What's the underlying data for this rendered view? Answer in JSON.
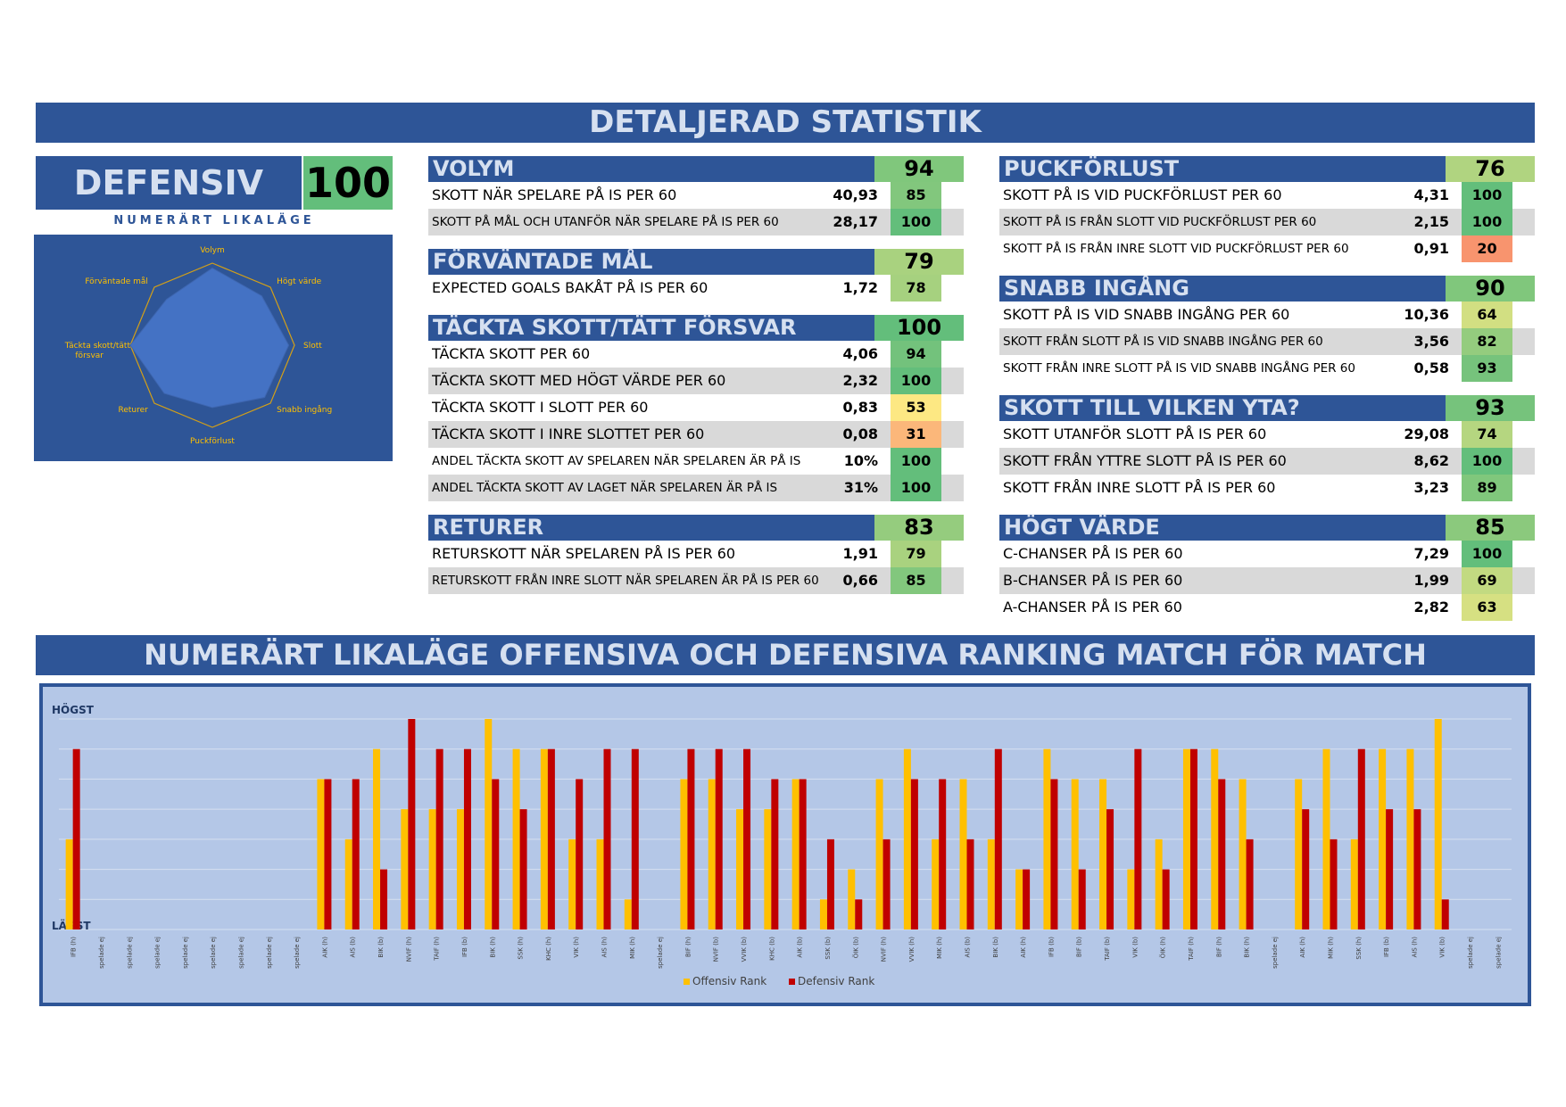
{
  "header": {
    "title": "DETALJERAD STATISTIK",
    "subtitle": "NUMERÄRT LIKALÄGE OFFENSIVA OCH DEFENSIVA RANKING MATCH FÖR MATCH"
  },
  "defensive": {
    "label": "DEFENSIV",
    "score": "100",
    "situation": "NUMERÄRT LIKALÄGE",
    "color": "#63be7b"
  },
  "radar": {
    "axes": [
      "Volym",
      "Högt värde",
      "Slott",
      "Snabb ingång",
      "Puckförlust",
      "Returer",
      "Täckta skott/tätt försvar",
      "Förväntade mål"
    ],
    "values": [
      94,
      85,
      93,
      90,
      76,
      83,
      100,
      79
    ],
    "fill": "#4472c4",
    "ring": "#d4a017"
  },
  "panels": {
    "volym": {
      "title": "VOLYM",
      "score": "94",
      "color": "#80c77c",
      "rows": [
        {
          "label": "SKOTT NÄR SPELARE PÅ IS PER 60",
          "value": "40,93",
          "rank": "85",
          "color": "#82c77d"
        },
        {
          "label": "SKOTT PÅ MÅL OCH UTANFÖR NÄR SPELARE PÅ IS PER 60",
          "value": "28,17",
          "rank": "100",
          "color": "#63be7b"
        }
      ]
    },
    "xg": {
      "title": "FÖRVÄNTADE MÅL",
      "score": "79",
      "color": "#a9d27f",
      "rows": [
        {
          "label": "EXPECTED GOALS BAKÅT PÅ IS PER 60",
          "value": "1,72",
          "rank": "78",
          "color": "#a6d17f"
        }
      ]
    },
    "block": {
      "title": "TÄCKTA SKOTT/TÄTT FÖRSVAR",
      "score": "100",
      "color": "#63be7b",
      "rows": [
        {
          "label": "TÄCKTA SKOTT PER 60",
          "value": "4,06",
          "rank": "94",
          "color": "#73c27c"
        },
        {
          "label": "TÄCKTA SKOTT MED HÖGT VÄRDE PER 60",
          "value": "2,32",
          "rank": "100",
          "color": "#63be7b"
        },
        {
          "label": "TÄCKTA SKOTT I SLOTT PER 60",
          "value": "0,83",
          "rank": "53",
          "color": "#fde883"
        },
        {
          "label": "TÄCKTA SKOTT I INRE SLOTTET PER 60",
          "value": "0,08",
          "rank": "31",
          "color": "#fbb77a"
        },
        {
          "label": "ANDEL TÄCKTA SKOTT AV SPELAREN NÄR SPELAREN ÄR PÅ IS",
          "value": "10%",
          "rank": "100",
          "color": "#63be7b"
        },
        {
          "label": "ANDEL TÄCKTA SKOTT AV LAGET NÄR SPELAREN ÄR PÅ IS",
          "value": "31%",
          "rank": "100",
          "color": "#63be7b"
        }
      ]
    },
    "returer": {
      "title": "RETURER",
      "score": "83",
      "color": "#95cc7e",
      "rows": [
        {
          "label": "RETURSKOTT NÄR SPELAREN PÅ IS PER 60",
          "value": "1,91",
          "rank": "79",
          "color": "#a9d27f"
        },
        {
          "label": "RETURSKOTT FRÅN INRE SLOTT NÄR SPELAREN ÄR PÅ IS PER 60",
          "value": "0,66",
          "rank": "85",
          "color": "#82c77d"
        }
      ]
    },
    "puck": {
      "title": "PUCKFÖRLUST",
      "score": "76",
      "color": "#b0d480",
      "rows": [
        {
          "label": "SKOTT PÅ IS VID PUCKFÖRLUST PER 60",
          "value": "4,31",
          "rank": "100",
          "color": "#63be7b"
        },
        {
          "label": "SKOTT PÅ IS FRÅN SLOTT VID PUCKFÖRLUST PER 60",
          "value": "2,15",
          "rank": "100",
          "color": "#63be7b"
        },
        {
          "label": "SKOTT PÅ IS FRÅN INRE SLOTT VID PUCKFÖRLUST PER 60",
          "value": "0,91",
          "rank": "20",
          "color": "#f8946e"
        }
      ]
    },
    "snabb": {
      "title": "SNABB INGÅNG",
      "score": "90",
      "color": "#80c77c",
      "rows": [
        {
          "label": "SKOTT PÅ IS VID SNABB INGÅNG PER 60",
          "value": "10,36",
          "rank": "64",
          "color": "#d2df82"
        },
        {
          "label": "SKOTT FRÅN SLOTT PÅ IS VID SNABB INGÅNG PER 60",
          "value": "3,56",
          "rank": "82",
          "color": "#94cc7e"
        },
        {
          "label": "SKOTT FRÅN INRE SLOTT PÅ IS VID SNABB INGÅNG PER 60",
          "value": "0,58",
          "rank": "93",
          "color": "#76c37c"
        }
      ]
    },
    "yta": {
      "title": "SKOTT TILL VILKEN YTA?",
      "score": "93",
      "color": "#76c37c",
      "rows": [
        {
          "label": "SKOTT UTANFÖR SLOTT PÅ IS PER 60",
          "value": "29,08",
          "rank": "74",
          "color": "#b5d680"
        },
        {
          "label": "SKOTT FRÅN YTTRE SLOTT PÅ IS PER 60",
          "value": "8,62",
          "rank": "100",
          "color": "#63be7b"
        },
        {
          "label": "SKOTT FRÅN INRE SLOTT PÅ IS PER 60",
          "value": "3,23",
          "rank": "89",
          "color": "#80c77c"
        }
      ]
    },
    "hogt": {
      "title": "HÖGT VÄRDE",
      "score": "85",
      "color": "#8bc97d",
      "rows": [
        {
          "label": "C-CHANSER PÅ IS PER 60",
          "value": "7,29",
          "rank": "100",
          "color": "#63be7b"
        },
        {
          "label": "B-CHANSER PÅ IS PER 60",
          "value": "1,99",
          "rank": "69",
          "color": "#c2da81"
        },
        {
          "label": "A-CHANSER PÅ IS PER 60",
          "value": "2,82",
          "rank": "63",
          "color": "#d6e082"
        }
      ]
    }
  },
  "chart_data": {
    "type": "bar",
    "ytop_label": "HÖGST",
    "ybottom_label": "LÄGST",
    "ylim": [
      0,
      7
    ],
    "grid": true,
    "legend_position": "bottom",
    "categories": [
      "IFB (h)",
      "spelade ej",
      "spelade ej",
      "spelade ej",
      "spelade ej",
      "spelade ej",
      "spelade ej",
      "spelade ej",
      "spelade ej",
      "AIK (h)",
      "AIS (b)",
      "BIK (b)",
      "NVIF (h)",
      "TAIF (h)",
      "IFB (b)",
      "BIK (h)",
      "SSK (h)",
      "KHC (h)",
      "VIK (h)",
      "AIS (h)",
      "MIK (h)",
      "spelade ej",
      "BIF (h)",
      "NVIF (b)",
      "VVIK (b)",
      "KHC (b)",
      "AIK (b)",
      "SSK (b)",
      "ÖIK (b)",
      "NVIF (h)",
      "VVIK (h)",
      "MIK (h)",
      "AIS (b)",
      "BIK (b)",
      "AIK (h)",
      "IFB (b)",
      "BIF (b)",
      "TAIF (b)",
      "VIK (b)",
      "ÖIK (h)",
      "TAIF (h)",
      "BIF (h)",
      "BIK (h)",
      "spelade ej",
      "AIK (h)",
      "MIK (h)",
      "SSK (h)",
      "IFB (b)",
      "AIS (h)",
      "VIK (b)",
      "spelade ej",
      "spelade ej"
    ],
    "series": [
      {
        "name": "Offensiv Rank",
        "color": "#ffc000",
        "values": [
          3,
          0,
          0,
          0,
          0,
          0,
          0,
          0,
          0,
          5,
          3,
          6,
          4,
          4,
          4,
          7,
          6,
          6,
          3,
          3,
          1,
          0,
          5,
          5,
          4,
          4,
          5,
          1,
          2,
          5,
          6,
          3,
          5,
          3,
          2,
          6,
          5,
          5,
          2,
          3,
          6,
          6,
          5,
          0,
          5,
          6,
          3,
          6,
          6,
          7,
          0,
          0
        ]
      },
      {
        "name": "Defensiv Rank",
        "color": "#c00000",
        "values": [
          6,
          0,
          0,
          0,
          0,
          0,
          0,
          0,
          0,
          5,
          5,
          2,
          7,
          6,
          6,
          5,
          4,
          6,
          5,
          6,
          6,
          0,
          6,
          6,
          6,
          5,
          5,
          3,
          1,
          3,
          5,
          5,
          3,
          6,
          2,
          5,
          2,
          4,
          6,
          2,
          6,
          5,
          3,
          0,
          4,
          3,
          6,
          4,
          4,
          1,
          0,
          0
        ]
      }
    ]
  }
}
